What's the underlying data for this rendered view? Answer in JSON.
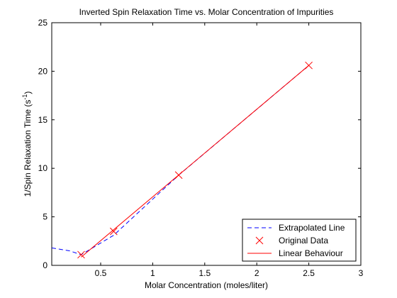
{
  "chart_data": {
    "type": "line",
    "title": "Inverted Spin Relaxation Time vs. Molar Concentration of Impurities",
    "xlabel": "Molar Concentration (moles/liter)",
    "ylabel_main": "1/Spin Relaxation Time (s",
    "ylabel_sup": "-1",
    "ylabel_close": ")",
    "xlim": [
      0.03,
      3
    ],
    "ylim": [
      0,
      25
    ],
    "xticks": [
      0.5,
      1,
      1.5,
      2,
      2.5,
      3
    ],
    "xtick_labels": [
      "0.5",
      "1",
      "1.5",
      "2",
      "2.5",
      "3"
    ],
    "yticks": [
      0,
      5,
      10,
      15,
      20,
      25
    ],
    "ytick_labels": [
      "0",
      "5",
      "10",
      "15",
      "20",
      "25"
    ],
    "grid": false,
    "legend_position": "bottom-right",
    "series": [
      {
        "name": "Extrapolated Line",
        "style": "dashed",
        "color": "#0000ff",
        "x": [
          0.03,
          0.2,
          0.3125,
          0.625,
          1.25,
          2.5
        ],
        "y": [
          1.8,
          1.5,
          1.1,
          3.1,
          9.3,
          20.6
        ]
      },
      {
        "name": "Original Data",
        "style": "x-marker",
        "color": "#ff0000",
        "x": [
          0.3125,
          0.625,
          1.25,
          2.5
        ],
        "y": [
          1.1,
          3.5,
          9.3,
          20.6
        ]
      },
      {
        "name": "Linear Behaviour",
        "style": "solid",
        "color": "#ff0000",
        "x": [
          0.3125,
          2.5
        ],
        "y": [
          0.85,
          20.6
        ]
      }
    ]
  }
}
